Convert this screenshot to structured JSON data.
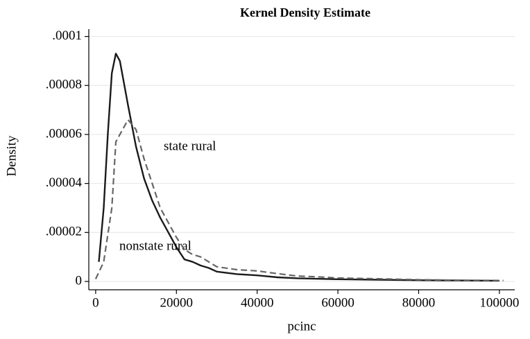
{
  "chart_data": {
    "type": "line",
    "title": "Kernel Density Estimate",
    "xlabel": "pcinc",
    "ylabel": "Density",
    "xlim": [
      -1700,
      103800
    ],
    "ylim": [
      -3.4e-06,
      0.000103
    ],
    "xticks": [
      0,
      20000,
      40000,
      60000,
      80000,
      100000
    ],
    "yticks": [
      0,
      {
        "value": 2e-05,
        "label": ".00002"
      },
      {
        "value": 4e-05,
        "label": ".00004"
      },
      {
        "value": 6e-05,
        "label": ".00006"
      },
      {
        "value": 8e-05,
        "label": ".00008"
      },
      {
        "value": 0.0001,
        "label": ".0001"
      }
    ],
    "grid": true,
    "series": [
      {
        "name": "nonstate rural",
        "color": "#1a1a1a",
        "dash": "solid",
        "x": [
          800,
          2000,
          3000,
          4000,
          5000,
          6000,
          8000,
          10000,
          12000,
          14000,
          16000,
          18000,
          20000,
          22000,
          24000,
          26000,
          28000,
          30000,
          35000,
          40000,
          45000,
          50000,
          60000,
          70000,
          80000,
          90000,
          100000
        ],
        "values": [
          8e-06,
          3e-05,
          6e-05,
          8.5e-05,
          9.3e-05,
          9e-05,
          7.2e-05,
          5.5e-05,
          4.2e-05,
          3.3e-05,
          2.6e-05,
          2e-05,
          1.4e-05,
          9e-06,
          8e-06,
          6.5e-06,
          5.5e-06,
          4e-06,
          3e-06,
          2.5e-06,
          1.7e-06,
          1.3e-06,
          9e-07,
          7e-07,
          5e-07,
          4e-07,
          3e-07
        ]
      },
      {
        "name": "state rural",
        "color": "#666666",
        "dash": "dashed",
        "x": [
          0,
          2000,
          4000,
          5000,
          6000,
          8000,
          10000,
          12000,
          14000,
          16000,
          18000,
          20000,
          22000,
          24000,
          26000,
          28000,
          30000,
          35000,
          40000,
          45000,
          50000,
          55000,
          60000,
          70000,
          80000,
          90000,
          101000
        ],
        "values": [
          1e-06,
          8e-06,
          3e-05,
          5.7e-05,
          6e-05,
          6.6e-05,
          6.2e-05,
          5e-05,
          4e-05,
          3e-05,
          2.4e-05,
          1.8e-05,
          1.3e-05,
          1.1e-05,
          1e-05,
          8e-06,
          6e-06,
          4.8e-06,
          4.3e-06,
          3.2e-06,
          2.2e-06,
          1.9e-06,
          1.4e-06,
          1.1e-06,
          7e-07,
          5e-07,
          4e-07
        ]
      }
    ]
  }
}
